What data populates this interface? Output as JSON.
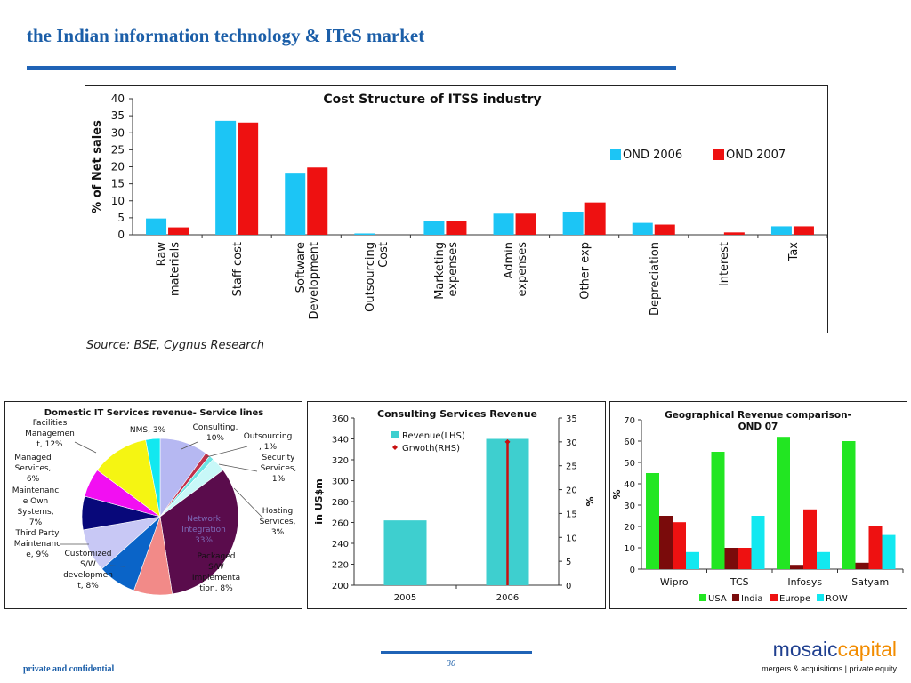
{
  "header": {
    "title": "the Indian information technology & ITeS market"
  },
  "source": "Source: BSE, Cygnus Research",
  "footer": {
    "confidential": "private and confidential",
    "page_number": "30",
    "brand_part1": "mosaic",
    "brand_part2": "capital",
    "tagline": "mergers & acquisitions | private equity"
  },
  "colors": {
    "cyan": "#1cc5f5",
    "red": "#ee1111",
    "teal": "#3ecfcf",
    "green": "#22e622",
    "maroon": "#7a0b0b"
  },
  "chart_data": [
    {
      "type": "bar",
      "title": "Cost Structure of ITSS industry",
      "ylabel": "% of Net sales",
      "ylim": [
        0,
        40
      ],
      "yticks": [
        "0",
        "5",
        "10",
        "15",
        "20",
        "25",
        "30",
        "35",
        "40"
      ],
      "legend_position": "right",
      "categories": [
        [
          "Raw",
          "materials"
        ],
        [
          "Staff cost"
        ],
        [
          "Software",
          "Development"
        ],
        [
          "Outsourcing",
          "Cost"
        ],
        [
          "Marketing",
          "expenses"
        ],
        [
          "Admin",
          "expenses"
        ],
        [
          "Other exp"
        ],
        [
          "Depreciation"
        ],
        [
          "Interest"
        ],
        [
          "Tax"
        ]
      ],
      "series": [
        {
          "name": "OND 2006",
          "color": "#1cc5f5",
          "values": [
            4.8,
            33.5,
            18,
            0.4,
            4,
            6.2,
            6.8,
            3.5,
            0,
            2.5
          ]
        },
        {
          "name": "OND 2007",
          "color": "#ee1111",
          "values": [
            2.2,
            33,
            19.8,
            0,
            4,
            6.2,
            9.5,
            3,
            0.7,
            2.5
          ]
        }
      ]
    },
    {
      "type": "pie",
      "title": "Domestic IT Services revenue- Service lines",
      "slices": [
        {
          "label": [
            "Consulting,",
            "10%"
          ],
          "value": 10,
          "color": "#b6b8f2"
        },
        {
          "label": [
            "Outsourcing",
            ", 1%"
          ],
          "value": 1,
          "color": "#c0304a"
        },
        {
          "label": [
            "Security",
            "Services,",
            "1%"
          ],
          "value": 1,
          "color": "#6de4e4"
        },
        {
          "label": [
            "Hosting",
            "Services,",
            "3%"
          ],
          "value": 3,
          "color": "#c8f8f8"
        },
        {
          "label": [
            "Network",
            "Integration",
            "33%"
          ],
          "value": 33,
          "color": "#5a0c4c"
        },
        {
          "label": [
            "Packaged",
            "S/W",
            "Implementa",
            "tion, 8%"
          ],
          "value": 8,
          "color": "#f28a88"
        },
        {
          "label": [
            "Customized",
            "S/W",
            "developmen",
            "t, 8%"
          ],
          "value": 8,
          "color": "#0a64c8"
        },
        {
          "label": [
            "Third Party",
            "Maintenanc",
            "e, 9%"
          ],
          "value": 9,
          "color": "#c8c8f5"
        },
        {
          "label": [
            "Maintenanc",
            "e Own",
            "Systems,",
            "7%"
          ],
          "value": 7,
          "color": "#08087a"
        },
        {
          "label": [
            "Managed",
            "Services,",
            "6%"
          ],
          "value": 6,
          "color": "#f20ff2"
        },
        {
          "label": [
            "Facilities",
            "Managemen",
            "t, 12%"
          ],
          "value": 12,
          "color": "#f5f512"
        },
        {
          "label": [
            "NMS, 3%"
          ],
          "value": 3,
          "color": "#12e8f0"
        }
      ]
    },
    {
      "type": "bar",
      "title": "Consulting Services Revenue",
      "ylabel": "in US$m",
      "y2label": "%",
      "categories": [
        "2005",
        "2006"
      ],
      "ylim": [
        200,
        360
      ],
      "yticks": [
        "200",
        "220",
        "240",
        "260",
        "280",
        "300",
        "320",
        "340",
        "360"
      ],
      "y2lim": [
        0,
        35
      ],
      "y2ticks": [
        "0",
        "5",
        "10",
        "15",
        "20",
        "25",
        "30",
        "35"
      ],
      "series": [
        {
          "name": "Revenue(LHS)",
          "color": "#3ecfcf",
          "values": [
            262,
            340
          ]
        },
        {
          "name": "Grwoth(RHS)",
          "color": "#c81010",
          "values": [
            null,
            30
          ]
        }
      ]
    },
    {
      "type": "bar",
      "title": [
        "Geographical Revenue comparison-",
        "OND 07"
      ],
      "ylabel": "%",
      "ylim": [
        0,
        70
      ],
      "yticks": [
        "0",
        "10",
        "20",
        "30",
        "40",
        "50",
        "60",
        "70"
      ],
      "legend_position": "bottom",
      "categories": [
        "Wipro",
        "TCS",
        "Infosys",
        "Satyam"
      ],
      "series": [
        {
          "name": "USA",
          "color": "#22e622",
          "values": [
            45,
            55,
            62,
            60
          ]
        },
        {
          "name": "India",
          "color": "#7a0b0b",
          "values": [
            25,
            10,
            2,
            3
          ]
        },
        {
          "name": "Europe",
          "color": "#ee1111",
          "values": [
            22,
            10,
            28,
            20
          ]
        },
        {
          "name": "ROW",
          "color": "#12e8f0",
          "values": [
            8,
            25,
            8,
            16
          ]
        }
      ]
    }
  ]
}
